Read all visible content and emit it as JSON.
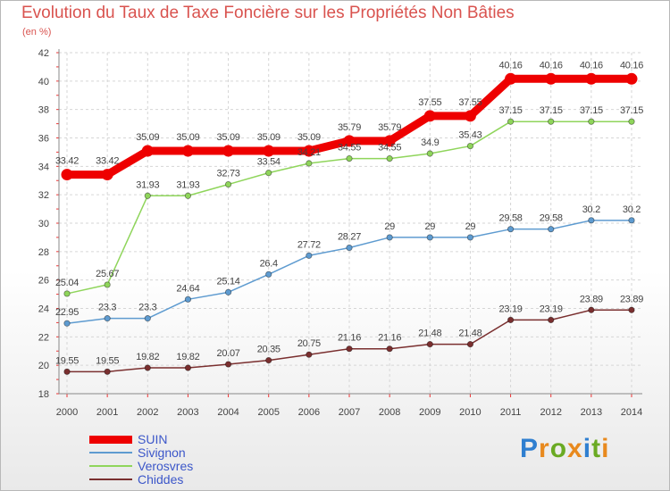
{
  "title": "Evolution du Taux de Taxe Foncière sur les Propriétés Non Bâties",
  "units": "(en %)",
  "logo": {
    "text": "Proxiti",
    "letter_colors": [
      "#2f7fd0",
      "#e8891d",
      "#6aaa23",
      "#e8891d",
      "#2f7fd0",
      "#6aaa23",
      "#e8891d"
    ]
  },
  "chart_data": {
    "type": "line",
    "x": [
      "2000",
      "2001",
      "2002",
      "2003",
      "2004",
      "2005",
      "2006",
      "2007",
      "2008",
      "2009",
      "2010",
      "2011",
      "2012",
      "2013",
      "2014"
    ],
    "ylim": [
      18,
      42
    ],
    "y_ticks": [
      "18",
      "20",
      "22",
      "24",
      "26",
      "28",
      "30",
      "32",
      "34",
      "36",
      "38",
      "40",
      "42"
    ],
    "grid": true,
    "series": [
      {
        "name": "SUIN",
        "color": "#ee0000",
        "values": [
          33.42,
          33.42,
          35.09,
          35.09,
          35.09,
          35.09,
          35.09,
          35.79,
          35.79,
          37.55,
          37.55,
          40.16,
          40.16,
          40.16,
          40.16
        ],
        "labels": [
          "33.42",
          "33.42",
          "35.09",
          "35.09",
          "35.09",
          "35.09",
          "35.09",
          "35.79",
          "35.79",
          "37.55",
          "37.55",
          "40.16",
          "40.16",
          "40.16",
          "40.16"
        ]
      },
      {
        "name": "Sivignon",
        "color": "#5e9bd0",
        "values": [
          22.95,
          23.3,
          23.3,
          24.64,
          25.14,
          26.4,
          27.72,
          28.27,
          29,
          29,
          29,
          29.58,
          29.58,
          30.2,
          30.2
        ],
        "labels": [
          "22.95",
          "23.3",
          "23.3",
          "24.64",
          "25.14",
          "26.4",
          "27.72",
          "28.27",
          "29",
          "29",
          "29",
          "29.58",
          "29.58",
          "30.2",
          "30.2"
        ]
      },
      {
        "name": "Verosvres",
        "color": "#8fd55b",
        "values": [
          25.04,
          25.67,
          31.93,
          31.93,
          32.73,
          33.54,
          34.21,
          34.55,
          34.55,
          34.9,
          35.43,
          37.15,
          37.15,
          37.15,
          37.15
        ],
        "labels": [
          "25.04",
          "25.67",
          "31.93",
          "31.93",
          "32.73",
          "33.54",
          "34.21",
          "34.55",
          "34.55",
          "34.9",
          "35.43",
          "37.15",
          "37.15",
          "37.15",
          "37.15"
        ]
      },
      {
        "name": "Chiddes",
        "color": "#7a2f2f",
        "values": [
          19.55,
          19.55,
          19.82,
          19.82,
          20.07,
          20.35,
          20.75,
          21.16,
          21.16,
          21.48,
          21.48,
          23.19,
          23.19,
          23.89,
          23.89
        ],
        "labels": [
          "19.55",
          "19.55",
          "19.82",
          "19.82",
          "20.07",
          "20.35",
          "20.75",
          "21.16",
          "21.16",
          "21.48",
          "21.48",
          "23.19",
          "23.19",
          "23.89",
          "23.89"
        ]
      }
    ]
  }
}
